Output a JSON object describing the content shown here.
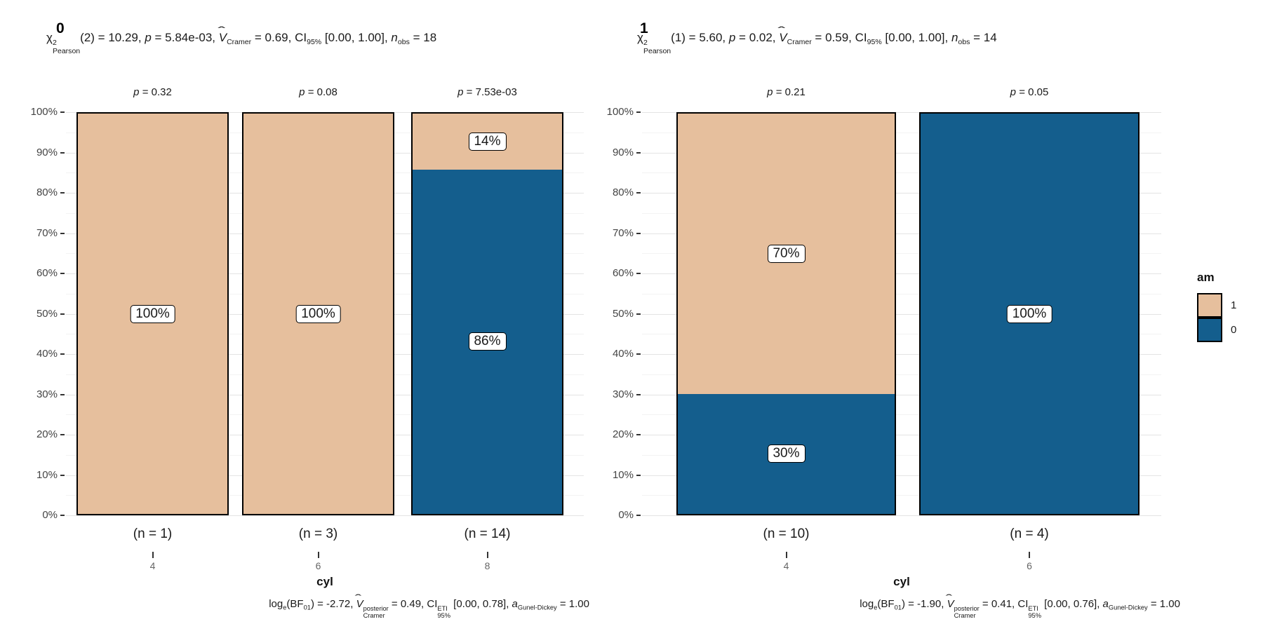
{
  "colors": {
    "tan": "#E6BF9D",
    "blue": "#145E8D",
    "grid_major": "#E4E4E4",
    "grid_minor": "#F3F3F3",
    "bar_border": "#000000",
    "label_box_bg": "#FFFFFF"
  },
  "legend": {
    "title": "am",
    "items": [
      {
        "label": "1",
        "color_key": "tan"
      },
      {
        "label": "0",
        "color_key": "blue"
      }
    ]
  },
  "y_axis": {
    "tick_labels": [
      "0%",
      "10%",
      "20%",
      "30%",
      "40%",
      "50%",
      "60%",
      "70%",
      "80%",
      "90%",
      "100%"
    ]
  },
  "chart_data": [
    {
      "type": "bar",
      "stacked": true,
      "title": "0",
      "xlabel": "cyl",
      "ylim": [
        0,
        100
      ],
      "subtitle_text": "χ²Pearson(2) = 10.29, p = 5.84e-03, V̂Cramer = 0.69, CI95% [0.00, 1.00], nobs = 18",
      "subtitle_segments": [
        {
          "t": "χ"
        },
        {
          "sup": "2",
          "sub": "Pearson"
        },
        {
          "t": "(2) = 10.29, "
        },
        {
          "t": "p",
          "i": true
        },
        {
          "t": " = 5.84e-03, "
        },
        {
          "t": "V",
          "i": true,
          "hat": true
        },
        {
          "sub": "Cramer"
        },
        {
          "t": " = 0.69, CI"
        },
        {
          "sub": "95%"
        },
        {
          "t": " [0.00, 1.00], "
        },
        {
          "t": "n",
          "i": true
        },
        {
          "sub": "obs"
        },
        {
          "t": " = 18"
        }
      ],
      "caption_text": "loge(BF01) = -2.72, V̂posterior Cramer = 0.49, CI ETI 95% [0.00, 0.78], aGunel-Dickey = 1.00",
      "caption_segments": [
        {
          "t": "log"
        },
        {
          "sub": "e"
        },
        {
          "t": "(BF"
        },
        {
          "sub": "01"
        },
        {
          "t": ") = -2.72, "
        },
        {
          "t": "V",
          "i": true,
          "hat": true
        },
        {
          "sup": "posterior",
          "sub": "Cramer"
        },
        {
          "t": " = 0.49, CI"
        },
        {
          "sup": "ETI",
          "sub": "95%"
        },
        {
          "t": " [0.00, 0.78], "
        },
        {
          "t": "a",
          "i": true
        },
        {
          "sub": "Gunel-Dickey"
        },
        {
          "t": " = 1.00"
        }
      ],
      "bars": [
        {
          "category": "4",
          "n_label": "(n = 1)",
          "p_label": "p = 0.32",
          "segments": [
            {
              "series": "1",
              "value_pct": 100,
              "label": "100%"
            }
          ]
        },
        {
          "category": "6",
          "n_label": "(n = 3)",
          "p_label": "p = 0.08",
          "segments": [
            {
              "series": "1",
              "value_pct": 100,
              "label": "100%"
            }
          ]
        },
        {
          "category": "8",
          "n_label": "(n = 14)",
          "p_label": "p = 7.53e-03",
          "segments": [
            {
              "series": "1",
              "value_pct": 14,
              "label": "14%"
            },
            {
              "series": "0",
              "value_pct": 86,
              "label": "86%"
            }
          ]
        }
      ]
    },
    {
      "type": "bar",
      "stacked": true,
      "title": "1",
      "xlabel": "cyl",
      "ylim": [
        0,
        100
      ],
      "subtitle_text": "χ²Pearson(1) = 5.60, p = 0.02, V̂Cramer = 0.59, CI95% [0.00, 1.00], nobs = 14",
      "subtitle_segments": [
        {
          "t": "χ"
        },
        {
          "sup": "2",
          "sub": "Pearson"
        },
        {
          "t": "(1) = 5.60, "
        },
        {
          "t": "p",
          "i": true
        },
        {
          "t": " = 0.02, "
        },
        {
          "t": "V",
          "i": true,
          "hat": true
        },
        {
          "sub": "Cramer"
        },
        {
          "t": " = 0.59, CI"
        },
        {
          "sub": "95%"
        },
        {
          "t": " [0.00, 1.00], "
        },
        {
          "t": "n",
          "i": true
        },
        {
          "sub": "obs"
        },
        {
          "t": " = 14"
        }
      ],
      "caption_text": "loge(BF01) = -1.90, V̂posterior Cramer = 0.41, CI ETI 95% [0.00, 0.76], aGunel-Dickey = 1.00",
      "caption_segments": [
        {
          "t": "log"
        },
        {
          "sub": "e"
        },
        {
          "t": "(BF"
        },
        {
          "sub": "01"
        },
        {
          "t": ") = -1.90, "
        },
        {
          "t": "V",
          "i": true,
          "hat": true
        },
        {
          "sup": "posterior",
          "sub": "Cramer"
        },
        {
          "t": " = 0.41, CI"
        },
        {
          "sup": "ETI",
          "sub": "95%"
        },
        {
          "t": " [0.00, 0.76], "
        },
        {
          "t": "a",
          "i": true
        },
        {
          "sub": "Gunel-Dickey"
        },
        {
          "t": " = 1.00"
        }
      ],
      "bars": [
        {
          "category": "4",
          "n_label": "(n = 10)",
          "p_label": "p = 0.21",
          "segments": [
            {
              "series": "1",
              "value_pct": 70,
              "label": "70%"
            },
            {
              "series": "0",
              "value_pct": 30,
              "label": "30%"
            }
          ]
        },
        {
          "category": "6",
          "n_label": "(n = 4)",
          "p_label": "p = 0.05",
          "segments": [
            {
              "series": "0",
              "value_pct": 100,
              "label": "100%"
            }
          ]
        }
      ]
    }
  ],
  "series_colors": {
    "1": "tan",
    "0": "blue"
  }
}
